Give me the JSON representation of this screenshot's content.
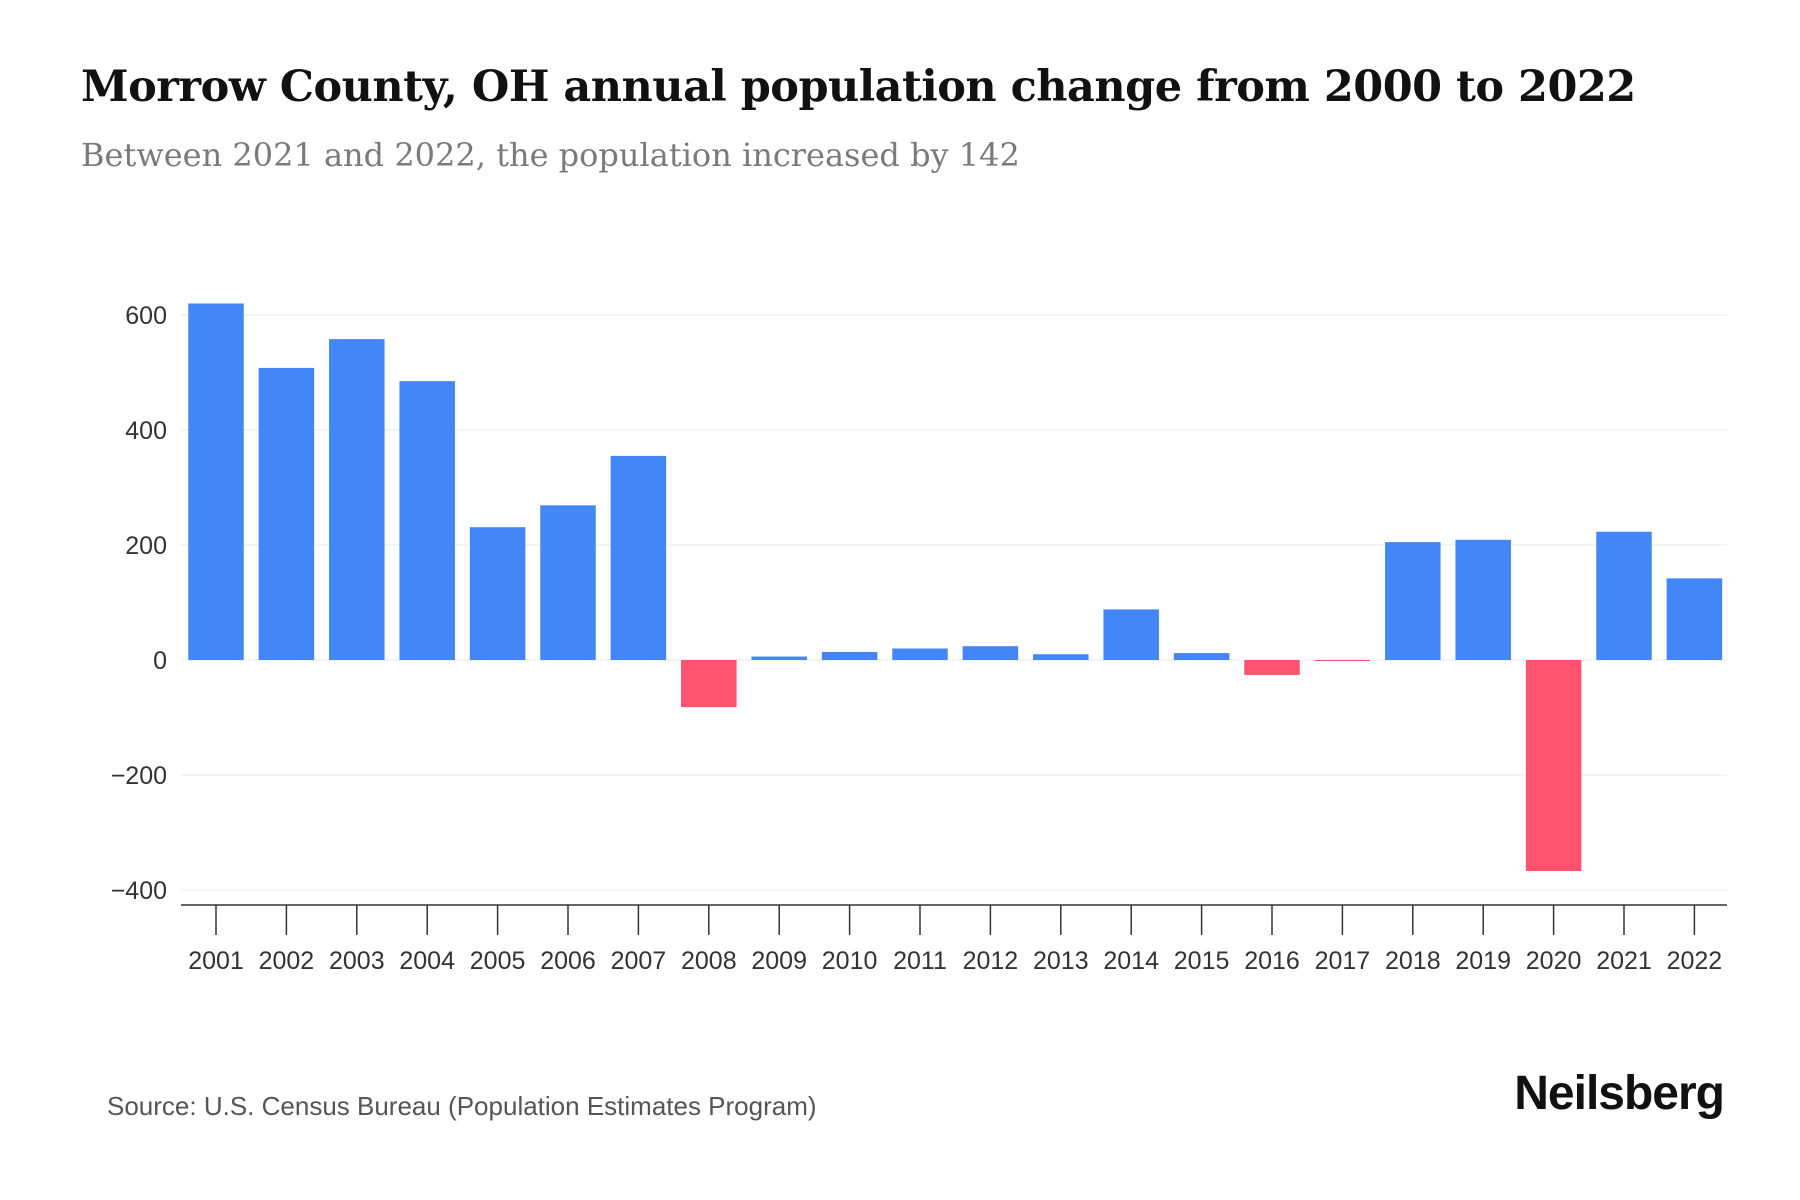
{
  "title": "Morrow County, OH annual population change from 2000 to 2022",
  "subtitle": "Between 2021 and 2022, the population increased by 142",
  "source": "Source: U.S. Census Bureau (Population Estimates Program)",
  "logo": "Neilsberg",
  "colors": {
    "positive": "#4287f5",
    "negative": "#ff5370",
    "grid": "#eeeeee",
    "axis": "#333333"
  },
  "chart_data": {
    "type": "bar",
    "title": "Morrow County, OH annual population change from 2000 to 2022",
    "xlabel": "",
    "ylabel": "",
    "ylim": [
      -400,
      640
    ],
    "yticks": [
      -400,
      -200,
      0,
      200,
      400,
      600
    ],
    "ytick_labels": [
      "−400",
      "−200",
      "0",
      "200",
      "400",
      "600"
    ],
    "grid": true,
    "categories": [
      "2001",
      "2002",
      "2003",
      "2004",
      "2005",
      "2006",
      "2007",
      "2008",
      "2009",
      "2010",
      "2011",
      "2012",
      "2013",
      "2014",
      "2015",
      "2016",
      "2017",
      "2018",
      "2019",
      "2020",
      "2021",
      "2022"
    ],
    "values": [
      620,
      508,
      558,
      485,
      231,
      269,
      355,
      -82,
      6,
      14,
      20,
      24,
      10,
      88,
      12,
      -26,
      -1,
      205,
      209,
      -367,
      223,
      142
    ]
  }
}
